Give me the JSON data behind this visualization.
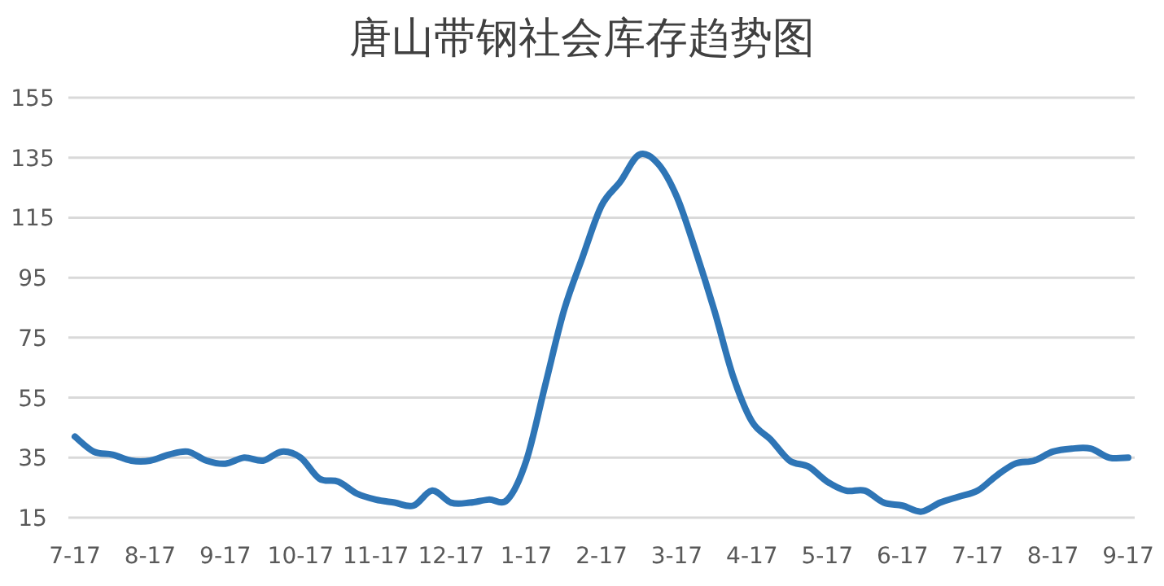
{
  "chart_data": {
    "type": "line",
    "title": "唐山带钢社会库存趋势图",
    "categories": [
      "7-17",
      null,
      null,
      null,
      "8-17",
      null,
      null,
      null,
      "9-17",
      null,
      null,
      null,
      "10-17",
      null,
      null,
      null,
      "11-17",
      null,
      null,
      null,
      "12-17",
      null,
      null,
      null,
      "1-17",
      null,
      null,
      null,
      "2-17",
      null,
      null,
      null,
      "3-17",
      null,
      null,
      null,
      "4-17",
      null,
      null,
      null,
      "5-17",
      null,
      null,
      null,
      "6-17",
      null,
      null,
      null,
      "7-17",
      null,
      null,
      null,
      "8-17",
      null,
      null,
      null,
      "9-17"
    ],
    "series": [
      {
        "color": "#2e75b6",
        "values": [
          42,
          37,
          36,
          34,
          34,
          36,
          37,
          34,
          33,
          35,
          34,
          37,
          35,
          28,
          27,
          23,
          21,
          20,
          19,
          24,
          20,
          20,
          21,
          21,
          34,
          59,
          84,
          102,
          119,
          127,
          136,
          133,
          122,
          104,
          84,
          62,
          47,
          41,
          34,
          32,
          27,
          24,
          24,
          20,
          19,
          17,
          20,
          22,
          24,
          29,
          33,
          34,
          37,
          38,
          38,
          35,
          35
        ]
      }
    ],
    "ylim": [
      15,
      155
    ],
    "yticks": [
      15,
      35,
      55,
      75,
      95,
      115,
      135,
      155
    ],
    "grid": "y",
    "line_style": "solid"
  }
}
